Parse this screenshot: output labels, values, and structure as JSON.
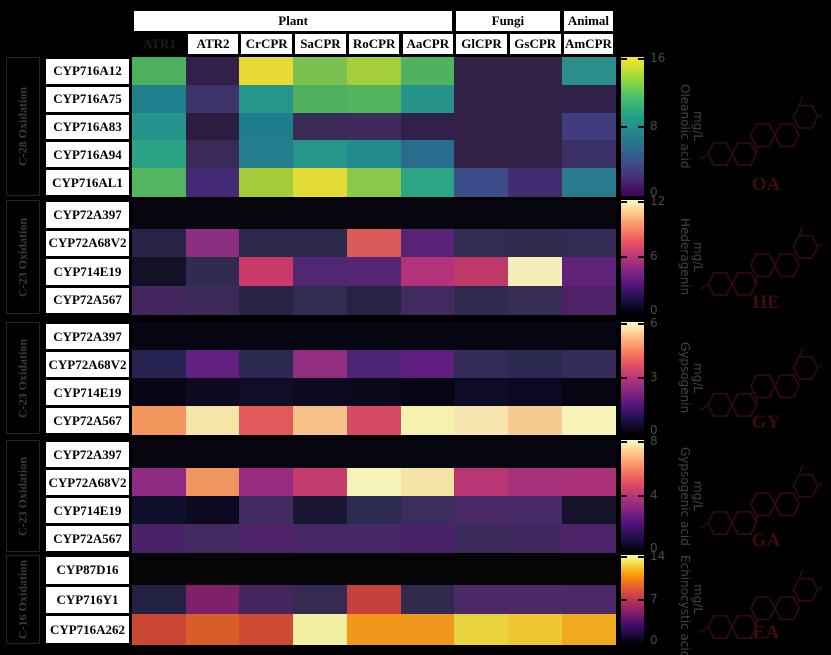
{
  "figure": {
    "background": "#000000",
    "header": {
      "kingdom_groups": [
        {
          "label": "Plant",
          "span": 6
        },
        {
          "label": "Fungi",
          "span": 2
        },
        {
          "label": "Animal",
          "span": 1
        }
      ],
      "columns": [
        "ATR1",
        "ATR2",
        "CrCPR",
        "SaCPR",
        "RoCPR",
        "AaCPR",
        "GlCPR",
        "GsCPR",
        "AmCPR"
      ],
      "first_column_hidden_style": true
    },
    "colormaps": {
      "viridis": [
        "#440154",
        "#46327e",
        "#365c8d",
        "#277f8e",
        "#1fa187",
        "#4ac16d",
        "#a0da39",
        "#fde725"
      ],
      "magma": [
        "#000004",
        "#1d1147",
        "#51127c",
        "#822681",
        "#b63679",
        "#e65164",
        "#fb8761",
        "#fec287",
        "#fcfdbf"
      ],
      "inferno": [
        "#000004",
        "#1b0c41",
        "#4a0c6b",
        "#781c6d",
        "#a52c60",
        "#cf4446",
        "#ed6925",
        "#fb9b06",
        "#f7d13d",
        "#fcffa4"
      ]
    },
    "panels": [
      {
        "group_label": "C-28 Oxidation",
        "rows": [
          "CYP716A12",
          "CYP716A75",
          "CYP716A83",
          "CYP716A94",
          "CYP716AL1"
        ],
        "colormap": "viridis",
        "colorbar": {
          "tick_top": "16",
          "tick_mid": "8",
          "tick_bottom": "0",
          "label_line1": "Oleanolic acid",
          "label_line2": "mg/L"
        },
        "molecule_label": "OA",
        "cell_colors": [
          [
            "#4cb05e",
            "#33204a",
            "#e8da32",
            "#7ac152",
            "#a5ce3b",
            "#4fb261",
            "#332147",
            "#332147",
            "#2b8e8d"
          ],
          [
            "#1f7f8b",
            "#3d3569",
            "#26968b",
            "#4fb15f",
            "#52b45e",
            "#279489",
            "#332147",
            "#332147",
            "#31204a"
          ],
          [
            "#25948a",
            "#2c1c40",
            "#1f7e8b",
            "#3a2a57",
            "#3e2a5c",
            "#31204a",
            "#332147",
            "#332147",
            "#3f3d7e"
          ],
          [
            "#2aa386",
            "#3a2a58",
            "#247e8b",
            "#26968b",
            "#238a8d",
            "#2a6c8e",
            "#332147",
            "#332147",
            "#3a2f66"
          ],
          [
            "#54b660",
            "#442a74",
            "#a3cd3a",
            "#e3dc36",
            "#8ac74a",
            "#2ca584",
            "#3c4d8a",
            "#432d72",
            "#2a7a8e"
          ]
        ]
      },
      {
        "group_label": "C-23 Oxidation",
        "rows": [
          "CYP72A397",
          "CYP72A68V2",
          "CYP714E19",
          "CYP72A567"
        ],
        "colormap": "magma",
        "colorbar": {
          "tick_top": "12",
          "tick_mid": "6",
          "tick_bottom": "0",
          "label_line1": "Hederagenin",
          "label_line2": "mg/L"
        },
        "molecule_label": "HE",
        "cell_colors": [
          [
            "#07060f",
            "#07060f",
            "#07060f",
            "#07060f",
            "#07060f",
            "#07060f",
            "#07060f",
            "#07060f",
            "#07060f"
          ],
          [
            "#272345",
            "#8c2f81",
            "#2b2849",
            "#2b2849",
            "#da5a58",
            "#582378",
            "#322b52",
            "#2f2a4e",
            "#342b54"
          ],
          [
            "#131126",
            "#302b51",
            "#ca3a68",
            "#512673",
            "#532572",
            "#b23377",
            "#bf3a68",
            "#f4efb9",
            "#5e2379"
          ],
          [
            "#43265e",
            "#3e2a59",
            "#282445",
            "#342b53",
            "#272345",
            "#402a5e",
            "#302a50",
            "#372c56",
            "#4d2269"
          ]
        ]
      },
      {
        "group_label": "C-23 Oxidation",
        "rows": [
          "CYP72A397",
          "CYP72A68V2",
          "CYP714E19",
          "CYP72A567"
        ],
        "colormap": "magma",
        "colorbar": {
          "tick_top": "6",
          "tick_mid": "3",
          "tick_bottom": "0",
          "label_line1": "Gypsogenin",
          "label_line2": "mg/L"
        },
        "molecule_label": "GY",
        "cell_colors": [
          [
            "#060512",
            "#060512",
            "#060512",
            "#060512",
            "#060512",
            "#060512",
            "#060512",
            "#060512",
            "#060512"
          ],
          [
            "#272350",
            "#611f80",
            "#2c2951",
            "#922d80",
            "#4e2476",
            "#601f80",
            "#342b58",
            "#2c2951",
            "#342b58"
          ],
          [
            "#080617",
            "#0d0a22",
            "#100d26",
            "#0c0a21",
            "#0a0819",
            "#060513",
            "#0e0b26",
            "#0b0921",
            "#060511"
          ],
          [
            "#f2965d",
            "#f7e4a7",
            "#e15a59",
            "#f7c287",
            "#d54a64",
            "#f7f1ae",
            "#f7e7ae",
            "#f7cb8f",
            "#f7f3b6"
          ]
        ]
      },
      {
        "group_label": "C-23 Oxidation",
        "rows": [
          "CYP72A397",
          "CYP72A68V2",
          "CYP714E19",
          "CYP72A567"
        ],
        "colormap": "magma",
        "colorbar": {
          "tick_top": "8",
          "tick_mid": "4",
          "tick_bottom": "0",
          "label_line1": "Gypsogenic acid",
          "label_line2": "mg/L"
        },
        "molecule_label": "GA",
        "cell_colors": [
          [
            "#060510",
            "#060510",
            "#060510",
            "#060510",
            "#060510",
            "#060510",
            "#060510",
            "#060510",
            "#060510"
          ],
          [
            "#8d2a81",
            "#f0955f",
            "#982a7f",
            "#c43b6e",
            "#f5f2ba",
            "#f4e4a4",
            "#b73673",
            "#a5317a",
            "#ab3278"
          ],
          [
            "#10102b",
            "#0c0b21",
            "#402c62",
            "#181632",
            "#2e2b52",
            "#3b2d5e",
            "#482a68",
            "#462a68",
            "#141329"
          ],
          [
            "#482367",
            "#402a60",
            "#4d2269",
            "#462768",
            "#462768",
            "#49226b",
            "#3b2b5a",
            "#432761",
            "#4d2269"
          ]
        ]
      },
      {
        "group_label": "C-16 Oxidation",
        "rows": [
          "CYP87D16",
          "CYP716Y1",
          "CYP716A262"
        ],
        "colormap": "inferno",
        "colorbar": {
          "tick_top": "14",
          "tick_mid": "7",
          "tick_bottom": "0",
          "label_line1": "Echinocystic acid",
          "label_line2": "mg/L"
        },
        "molecule_label": "EA",
        "cell_colors": [
          [
            "#050407",
            "#050407",
            "#050407",
            "#050407",
            "#050407",
            "#050407",
            "#050407",
            "#050407",
            "#050407"
          ],
          [
            "#242243",
            "#7e2169",
            "#43265e",
            "#342a52",
            "#c4413e",
            "#32294f",
            "#4c2a68",
            "#4c2a68",
            "#4c2966"
          ],
          [
            "#cb4734",
            "#d95d28",
            "#cd4b33",
            "#f2f0a0",
            "#f1981c",
            "#f0951e",
            "#e9d440",
            "#eec62f",
            "#f1aa1d"
          ]
        ]
      }
    ]
  },
  "chart_data": [
    {
      "type": "heatmap",
      "title": "C-28 Oxidation — Oleanolic acid (mg/L)",
      "x_categories": [
        "ATR1",
        "ATR2",
        "CrCPR",
        "SaCPR",
        "RoCPR",
        "AaCPR",
        "GlCPR",
        "GsCPR",
        "AmCPR"
      ],
      "y_categories": [
        "CYP716A12",
        "CYP716A75",
        "CYP716A83",
        "CYP716A94",
        "CYP716AL1"
      ],
      "colormap": "viridis",
      "vmin": 0,
      "vmax": 16,
      "colorbar_ticks": [
        0,
        8,
        16
      ],
      "values": [
        [
          10.5,
          1.5,
          15.5,
          11.0,
          12.5,
          10.5,
          1.5,
          1.5,
          7.0
        ],
        [
          6.5,
          3.0,
          8.0,
          10.0,
          10.0,
          8.0,
          1.5,
          1.5,
          1.8
        ],
        [
          7.5,
          1.0,
          6.5,
          2.0,
          2.2,
          1.8,
          1.5,
          1.5,
          3.5
        ],
        [
          9.0,
          2.0,
          6.5,
          8.0,
          7.5,
          5.5,
          1.5,
          1.5,
          2.5
        ],
        [
          10.5,
          2.8,
          13.0,
          15.0,
          12.0,
          9.0,
          4.0,
          2.8,
          6.5
        ]
      ]
    },
    {
      "type": "heatmap",
      "title": "C-23 Oxidation — Hederagenin (mg/L)",
      "x_categories": [
        "ATR1",
        "ATR2",
        "CrCPR",
        "SaCPR",
        "RoCPR",
        "AaCPR",
        "GlCPR",
        "GsCPR",
        "AmCPR"
      ],
      "y_categories": [
        "CYP72A397",
        "CYP72A68V2",
        "CYP714E19",
        "CYP72A567"
      ],
      "colormap": "magma",
      "vmin": 0,
      "vmax": 12,
      "colorbar_ticks": [
        0,
        6,
        12
      ],
      "values": [
        [
          0.1,
          0.1,
          0.1,
          0.1,
          0.1,
          0.1,
          0.1,
          0.1,
          0.1
        ],
        [
          1.8,
          5.8,
          2.0,
          2.0,
          8.2,
          3.6,
          2.2,
          2.1,
          2.2
        ],
        [
          0.9,
          2.1,
          7.2,
          3.2,
          3.3,
          6.5,
          6.9,
          11.8,
          3.8
        ],
        [
          2.8,
          2.6,
          1.9,
          2.3,
          1.8,
          2.7,
          2.1,
          2.4,
          3.0
        ]
      ]
    },
    {
      "type": "heatmap",
      "title": "C-23 Oxidation — Gypsogenin (mg/L)",
      "x_categories": [
        "ATR1",
        "ATR2",
        "CrCPR",
        "SaCPR",
        "RoCPR",
        "AaCPR",
        "GlCPR",
        "GsCPR",
        "AmCPR"
      ],
      "y_categories": [
        "CYP72A397",
        "CYP72A68V2",
        "CYP714E19",
        "CYP72A567"
      ],
      "colormap": "magma",
      "vmin": 0,
      "vmax": 6,
      "colorbar_ticks": [
        0,
        3,
        6
      ],
      "values": [
        [
          0.05,
          0.05,
          0.05,
          0.05,
          0.05,
          0.05,
          0.05,
          0.05,
          0.05
        ],
        [
          0.9,
          1.9,
          1.0,
          2.4,
          1.5,
          1.9,
          1.2,
          1.0,
          1.2
        ],
        [
          0.1,
          0.15,
          0.2,
          0.15,
          0.1,
          0.05,
          0.2,
          0.15,
          0.05
        ],
        [
          4.2,
          5.4,
          3.6,
          4.8,
          3.4,
          5.7,
          5.5,
          5.0,
          5.8
        ]
      ]
    },
    {
      "type": "heatmap",
      "title": "C-23 Oxidation — Gypsogenic acid (mg/L)",
      "x_categories": [
        "ATR1",
        "ATR2",
        "CrCPR",
        "SaCPR",
        "RoCPR",
        "AaCPR",
        "GlCPR",
        "GsCPR",
        "AmCPR"
      ],
      "y_categories": [
        "CYP72A397",
        "CYP72A68V2",
        "CYP714E19",
        "CYP72A567"
      ],
      "colormap": "magma",
      "vmin": 0,
      "vmax": 8,
      "colorbar_ticks": [
        0,
        4,
        8
      ],
      "values": [
        [
          0.05,
          0.05,
          0.05,
          0.05,
          0.05,
          0.05,
          0.05,
          0.05,
          0.05
        ],
        [
          3.2,
          5.9,
          3.4,
          4.3,
          7.9,
          7.4,
          4.1,
          3.7,
          3.8
        ],
        [
          0.35,
          0.25,
          1.35,
          0.5,
          1.0,
          1.25,
          1.5,
          1.5,
          0.4
        ],
        [
          1.55,
          1.4,
          1.6,
          1.5,
          1.5,
          1.55,
          1.3,
          1.45,
          1.6
        ]
      ]
    },
    {
      "type": "heatmap",
      "title": "C-16 Oxidation — Echinocystic acid (mg/L)",
      "x_categories": [
        "ATR1",
        "ATR2",
        "CrCPR",
        "SaCPR",
        "RoCPR",
        "AaCPR",
        "GlCPR",
        "GsCPR",
        "AmCPR"
      ],
      "y_categories": [
        "CYP87D16",
        "CYP716Y1",
        "CYP716A262"
      ],
      "colormap": "inferno",
      "vmin": 0,
      "vmax": 14,
      "colorbar_ticks": [
        0,
        7,
        14
      ],
      "values": [
        [
          0.05,
          0.05,
          0.05,
          0.05,
          0.05,
          0.05,
          0.05,
          0.05,
          0.05
        ],
        [
          1.5,
          4.3,
          2.6,
          2.2,
          7.6,
          2.2,
          3.0,
          3.0,
          3.0
        ],
        [
          8.0,
          8.8,
          8.2,
          13.6,
          10.9,
          10.8,
          12.4,
          11.9,
          11.3
        ]
      ]
    }
  ]
}
